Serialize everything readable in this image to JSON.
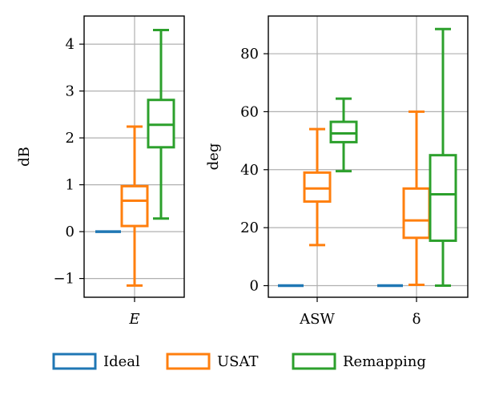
{
  "chart_data": [
    {
      "type": "box",
      "ylabel": "dB",
      "ylim": [
        -1.4,
        4.6
      ],
      "yticks": [
        -1,
        0,
        1,
        2,
        3,
        4
      ],
      "ytick_labels": [
        "−1",
        "0",
        "1",
        "2",
        "3",
        "4"
      ],
      "categories": [
        "E"
      ],
      "category_style": "italic",
      "grid": true,
      "series": [
        {
          "name": "Ideal",
          "color": "#1f77b4",
          "boxes": [
            {
              "whislo": 0.0,
              "q1": 0.0,
              "med": 0.0,
              "q3": 0.0,
              "whishi": 0.0
            }
          ]
        },
        {
          "name": "USAT",
          "color": "#ff7f0e",
          "boxes": [
            {
              "whislo": -1.15,
              "q1": 0.12,
              "med": 0.66,
              "q3": 0.97,
              "whishi": 2.24
            }
          ]
        },
        {
          "name": "Remapping",
          "color": "#2ca02c",
          "boxes": [
            {
              "whislo": 0.28,
              "q1": 1.8,
              "med": 2.28,
              "q3": 2.81,
              "whishi": 4.3
            }
          ]
        }
      ]
    },
    {
      "type": "box",
      "ylabel": "deg",
      "ylim": [
        -4,
        93
      ],
      "yticks": [
        0,
        20,
        40,
        60,
        80
      ],
      "ytick_labels": [
        "0",
        "20",
        "40",
        "60",
        "80"
      ],
      "categories": [
        "ASW",
        "δ"
      ],
      "grid": true,
      "series": [
        {
          "name": "Ideal",
          "color": "#1f77b4",
          "boxes": [
            {
              "whislo": 0,
              "q1": 0,
              "med": 0,
              "q3": 0,
              "whishi": 0
            },
            {
              "whislo": 0,
              "q1": 0,
              "med": 0,
              "q3": 0,
              "whishi": 0
            }
          ]
        },
        {
          "name": "USAT",
          "color": "#ff7f0e",
          "boxes": [
            {
              "whislo": 14.0,
              "q1": 29.0,
              "med": 33.5,
              "q3": 39.0,
              "whishi": 54.0
            },
            {
              "whislo": 0.3,
              "q1": 16.5,
              "med": 22.5,
              "q3": 33.5,
              "whishi": 60.0
            }
          ]
        },
        {
          "name": "Remapping",
          "color": "#2ca02c",
          "boxes": [
            {
              "whislo": 39.5,
              "q1": 49.5,
              "med": 52.5,
              "q3": 56.5,
              "whishi": 64.5
            },
            {
              "whislo": 0.0,
              "q1": 15.5,
              "med": 31.5,
              "q3": 45.0,
              "whishi": 88.5
            }
          ]
        }
      ]
    }
  ],
  "legend": {
    "placement": "bottom-center",
    "entries": [
      {
        "label": "Ideal",
        "color": "#1f77b4"
      },
      {
        "label": "USAT",
        "color": "#ff7f0e"
      },
      {
        "label": "Remapping",
        "color": "#2ca02c"
      }
    ]
  }
}
